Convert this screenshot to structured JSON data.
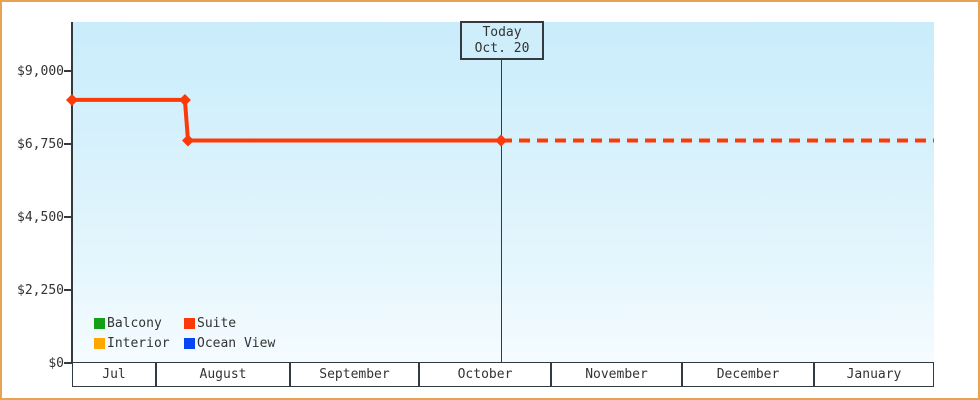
{
  "frame": {
    "border_color": "#e8a254",
    "plot_gradient_top": "#c9ecfb",
    "plot_gradient_bottom": "#f5fcff",
    "axis_color": "#333b41",
    "text_color": "#333333"
  },
  "chart_data": {
    "type": "line",
    "title": "",
    "xlabel": "",
    "ylabel": "",
    "grid": false,
    "y_axis": {
      "ylim": [
        0,
        10500
      ],
      "ticks": [
        {
          "label": "$0",
          "value": 0
        },
        {
          "label": "$2,250",
          "value": 2250
        },
        {
          "label": "$4,500",
          "value": 4500
        },
        {
          "label": "$6,750",
          "value": 6750
        },
        {
          "label": "$9,000",
          "value": 9000
        }
      ]
    },
    "x_axis": {
      "month_cells": [
        {
          "label": "Jul",
          "x0": 0.0,
          "x1": 0.0975
        },
        {
          "label": "August",
          "x0": 0.0975,
          "x1": 0.2529
        },
        {
          "label": "September",
          "x0": 0.2529,
          "x1": 0.4026
        },
        {
          "label": "October",
          "x0": 0.4026,
          "x1": 0.5557
        },
        {
          "label": "November",
          "x0": 0.5557,
          "x1": 0.7077
        },
        {
          "label": "December",
          "x0": 0.7077,
          "x1": 0.8608
        },
        {
          "label": "January",
          "x0": 0.8608,
          "x1": 1.0
        }
      ]
    },
    "series": [
      {
        "name": "Suite",
        "color": "#fb3a09",
        "line_width": 4,
        "history_style": "solid",
        "forecast_style": "dotted",
        "history": [
          {
            "x": 0.0,
            "price": 8100
          },
          {
            "x": 0.131,
            "price": 8100
          },
          {
            "x": 0.1346,
            "price": 6850
          },
          {
            "x": 0.4977,
            "price": 6850
          }
        ],
        "forecast": [
          {
            "x": 0.4977,
            "price": 6850
          },
          {
            "x": 1.0,
            "price": 6850
          }
        ]
      }
    ],
    "legend": {
      "position": "bottom-left",
      "items": [
        {
          "label": "Balcony",
          "color": "#14a014"
        },
        {
          "label": "Suite",
          "color": "#fb3a09"
        },
        {
          "label": "Interior",
          "color": "#ffa600"
        },
        {
          "label": "Ocean View",
          "color": "#0846f5"
        }
      ]
    },
    "annotation": {
      "line1": "Today",
      "line2": "Oct. 20",
      "x": 0.4977
    }
  }
}
